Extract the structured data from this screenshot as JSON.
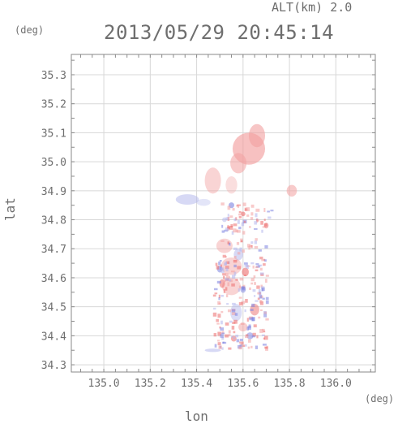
{
  "header": {
    "altitude": "ALT(km) 2.0",
    "datetime": "2013/05/29 20:45:14"
  },
  "axes": {
    "y_unit": "(deg)",
    "x_unit": "(deg)",
    "x_label": "lon",
    "y_label": "lat"
  },
  "chart_data": {
    "type": "heatmap",
    "xlabel": "lon",
    "ylabel": "lat",
    "xlim": [
      134.86,
      136.17
    ],
    "ylim": [
      34.275,
      35.37
    ],
    "x_ticks": [
      "135.0",
      "135.2",
      "135.4",
      "135.6",
      "135.8",
      "136.0"
    ],
    "y_ticks": [
      "34.3",
      "34.4",
      "34.5",
      "34.6",
      "34.7",
      "34.8",
      "34.9",
      "35.0",
      "35.1",
      "35.2",
      "35.3"
    ],
    "grid": true,
    "colors": {
      "positive": "#f2a0a0",
      "positive_strong": "#ec6d6d",
      "negative": "#b0b4ec",
      "negative_strong": "#7c82e0",
      "grid": "#d8d8d8",
      "axis": "#8a8a8a"
    }
  }
}
